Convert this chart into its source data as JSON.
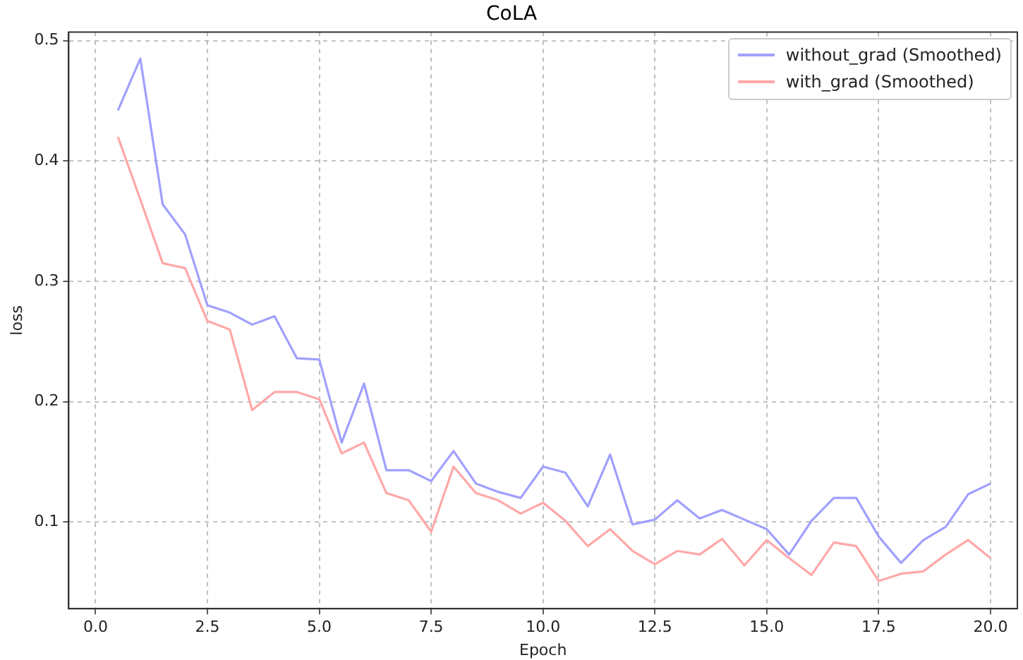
{
  "chart_data": {
    "type": "line",
    "title": "CoLA",
    "xlabel": "Epoch",
    "ylabel": "loss",
    "x": [
      0.5,
      1,
      1.5,
      2,
      2.5,
      3,
      3.5,
      4,
      4.5,
      5,
      5.5,
      6,
      6.5,
      7,
      7.5,
      8,
      8.5,
      9,
      9.5,
      10,
      10.5,
      11,
      11.5,
      12,
      12.5,
      13,
      13.5,
      14,
      14.5,
      15,
      15.5,
      16,
      16.5,
      17,
      17.5,
      18,
      18.5,
      19,
      19.5,
      20
    ],
    "series": [
      {
        "name": "without_grad (Smoothed)",
        "color": "#a0a0ff",
        "values": [
          0.442,
          0.485,
          0.364,
          0.339,
          0.28,
          0.274,
          0.264,
          0.271,
          0.236,
          0.235,
          0.166,
          0.215,
          0.143,
          0.143,
          0.134,
          0.159,
          0.132,
          0.125,
          0.12,
          0.146,
          0.141,
          0.113,
          0.156,
          0.098,
          0.102,
          0.118,
          0.103,
          0.11,
          0.102,
          0.094,
          0.073,
          0.101,
          0.12,
          0.12,
          0.088,
          0.066,
          0.085,
          0.096,
          0.123,
          0.132
        ]
      },
      {
        "name": "with_grad (Smoothed)",
        "color": "#ffa8a8",
        "values": [
          0.42,
          0.368,
          0.315,
          0.311,
          0.267,
          0.26,
          0.193,
          0.208,
          0.208,
          0.202,
          0.157,
          0.166,
          0.124,
          0.118,
          0.092,
          0.146,
          0.124,
          0.118,
          0.107,
          0.116,
          0.101,
          0.08,
          0.094,
          0.076,
          0.065,
          0.076,
          0.073,
          0.086,
          0.064,
          0.085,
          0.07,
          0.056,
          0.083,
          0.08,
          0.051,
          0.057,
          0.059,
          0.073,
          0.085,
          0.07
        ]
      }
    ],
    "xlim": [
      -0.6,
      20.6
    ],
    "ylim": [
      0.028,
      0.507
    ],
    "xticks": [
      {
        "value": 0,
        "label": "0.0"
      },
      {
        "value": 2.5,
        "label": "2.5"
      },
      {
        "value": 5,
        "label": "5.0"
      },
      {
        "value": 7.5,
        "label": "7.5"
      },
      {
        "value": 10,
        "label": "10.0"
      },
      {
        "value": 12.5,
        "label": "12.5"
      },
      {
        "value": 15,
        "label": "15.0"
      },
      {
        "value": 17.5,
        "label": "17.5"
      },
      {
        "value": 20,
        "label": "20.0"
      }
    ],
    "yticks": [
      0.1,
      0.2,
      0.3,
      0.4,
      0.5
    ],
    "grid": true,
    "legend": "top right",
    "line_style": "solid",
    "marker": "none"
  }
}
